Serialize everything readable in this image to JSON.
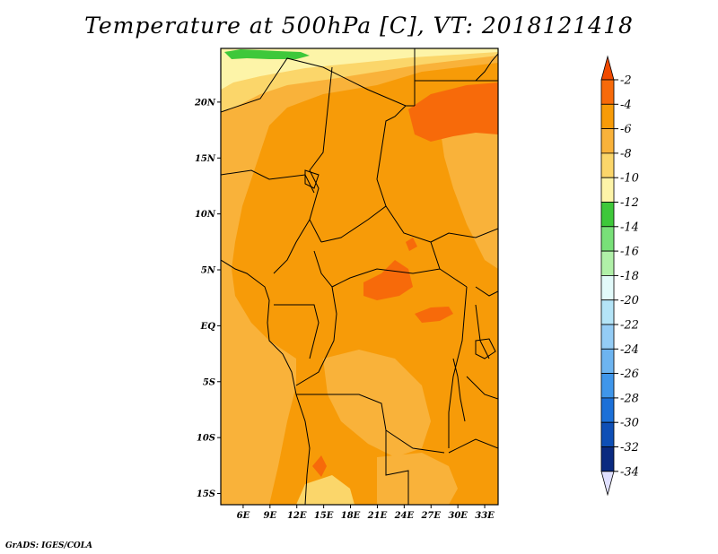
{
  "title": "Temperature at 500hPa [C], VT: 2018121418",
  "credit": "GrADS: IGES/COLA",
  "map": {
    "variable": "Temperature at 500hPa",
    "units": "C",
    "valid_time": "2018121418",
    "lon_range": [
      3.5,
      34.5
    ],
    "lat_range": [
      -16,
      24.8
    ],
    "lon_ticks": [
      {
        "value": 6,
        "label": "6E"
      },
      {
        "value": 9,
        "label": "9E"
      },
      {
        "value": 12,
        "label": "12E"
      },
      {
        "value": 15,
        "label": "15E"
      },
      {
        "value": 18,
        "label": "18E"
      },
      {
        "value": 21,
        "label": "21E"
      },
      {
        "value": 24,
        "label": "24E"
      },
      {
        "value": 27,
        "label": "27E"
      },
      {
        "value": 30,
        "label": "30E"
      },
      {
        "value": 33,
        "label": "33E"
      }
    ],
    "lat_ticks": [
      {
        "value": 20,
        "label": "20N"
      },
      {
        "value": 15,
        "label": "15N"
      },
      {
        "value": 10,
        "label": "10N"
      },
      {
        "value": 5,
        "label": "5N"
      },
      {
        "value": 0,
        "label": "EQ"
      },
      {
        "value": -5,
        "label": "5S"
      },
      {
        "value": -10,
        "label": "10S"
      },
      {
        "value": -15,
        "label": "15S"
      }
    ]
  },
  "colorbar": {
    "levels": [
      {
        "label": "-2",
        "color": "#f04a00"
      },
      {
        "label": "-4",
        "color": "#f76a0a"
      },
      {
        "label": "-6",
        "color": "#f79b08"
      },
      {
        "label": "-8",
        "color": "#f9b23a"
      },
      {
        "label": "-10",
        "color": "#fbd66a"
      },
      {
        "label": "-12",
        "color": "#fdf4a8"
      },
      {
        "label": "-14",
        "color": "#3ec83a"
      },
      {
        "label": "-16",
        "color": "#78e078"
      },
      {
        "label": "-18",
        "color": "#b0f0a8"
      },
      {
        "label": "-20",
        "color": "#e2fafa"
      },
      {
        "label": "-22",
        "color": "#b4e4f7"
      },
      {
        "label": "-24",
        "color": "#94ccf5"
      },
      {
        "label": "-26",
        "color": "#6db4f0"
      },
      {
        "label": "-28",
        "color": "#3f96ea"
      },
      {
        "label": "-30",
        "color": "#1c70d8"
      },
      {
        "label": "-32",
        "color": "#0e4fb6"
      },
      {
        "label": "-34",
        "color": "#0a2a80"
      }
    ],
    "top_color": "#f04a00",
    "colors_in_between": [
      "#f76a0a",
      "#f79b08",
      "#f9b23a",
      "#fbd66a",
      "#fdf4a8",
      "#3ec83a",
      "#78e078",
      "#b0f0a8",
      "#e2fafa",
      "#b4e4f7",
      "#94ccf5",
      "#6db4f0",
      "#3f96ea",
      "#1c70d8",
      "#0e4fb6",
      "#0a2a80"
    ],
    "bottom_color": "#e0e0ff"
  }
}
